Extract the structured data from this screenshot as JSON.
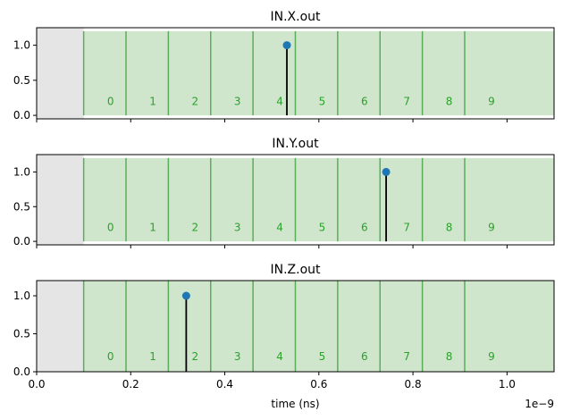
{
  "chart_data": [
    {
      "type": "scatter",
      "title": "IN.X.out",
      "xlim": [
        0,
        1.1
      ],
      "ylim": [
        -0.05,
        1.25
      ],
      "yticks": [
        "0.0",
        "0.5",
        "1.0"
      ],
      "ytick_values": [
        0,
        0.5,
        1.0
      ],
      "gray_region": [
        0,
        0.1
      ],
      "bin_edges": [
        0.1,
        0.19,
        0.28,
        0.37,
        0.46,
        0.55,
        0.64,
        0.73,
        0.82,
        0.91,
        1.1
      ],
      "bin_labels": [
        "0",
        "1",
        "2",
        "3",
        "4",
        "5",
        "6",
        "7",
        "8",
        "9"
      ],
      "points": [
        {
          "x": 0.532,
          "y": 1.0
        }
      ],
      "show_xticklabels": false
    },
    {
      "type": "scatter",
      "title": "IN.Y.out",
      "xlim": [
        0,
        1.1
      ],
      "ylim": [
        -0.05,
        1.25
      ],
      "yticks": [
        "0.0",
        "0.5",
        "1.0"
      ],
      "ytick_values": [
        0,
        0.5,
        1.0
      ],
      "gray_region": [
        0,
        0.1
      ],
      "bin_edges": [
        0.1,
        0.19,
        0.28,
        0.37,
        0.46,
        0.55,
        0.64,
        0.73,
        0.82,
        0.91,
        1.1
      ],
      "bin_labels": [
        "0",
        "1",
        "2",
        "3",
        "4",
        "5",
        "6",
        "7",
        "8",
        "9"
      ],
      "points": [
        {
          "x": 0.743,
          "y": 1.0
        }
      ],
      "show_xticklabels": false
    },
    {
      "type": "scatter",
      "title": "IN.Z.out",
      "xlim": [
        0,
        1.1
      ],
      "ylim": [
        0,
        1.2
      ],
      "yticks": [
        "0.0",
        "0.5",
        "1.0"
      ],
      "ytick_values": [
        0,
        0.5,
        1.0
      ],
      "gray_region": [
        0,
        0.1
      ],
      "bin_edges": [
        0.1,
        0.19,
        0.28,
        0.37,
        0.46,
        0.55,
        0.64,
        0.73,
        0.82,
        0.91,
        1.1
      ],
      "bin_labels": [
        "0",
        "1",
        "2",
        "3",
        "4",
        "5",
        "6",
        "7",
        "8",
        "9"
      ],
      "points": [
        {
          "x": 0.318,
          "y": 1.0
        }
      ],
      "show_xticklabels": true,
      "xticks": [
        "0.0",
        "0.2",
        "0.4",
        "0.6",
        "0.8",
        "1.0"
      ],
      "xtick_values": [
        0,
        0.2,
        0.4,
        0.6,
        0.8,
        1.0
      ],
      "xlabel": "time (ns)",
      "x_offset_text": "1e−9"
    }
  ],
  "colors": {
    "bin_fill": "#cfe6cc",
    "bin_edge": "#5aae5a",
    "gray_fill": "#e5e5e5",
    "point": "#1f77b4",
    "stem": "#000000",
    "bin_label": "#2ca02c"
  }
}
